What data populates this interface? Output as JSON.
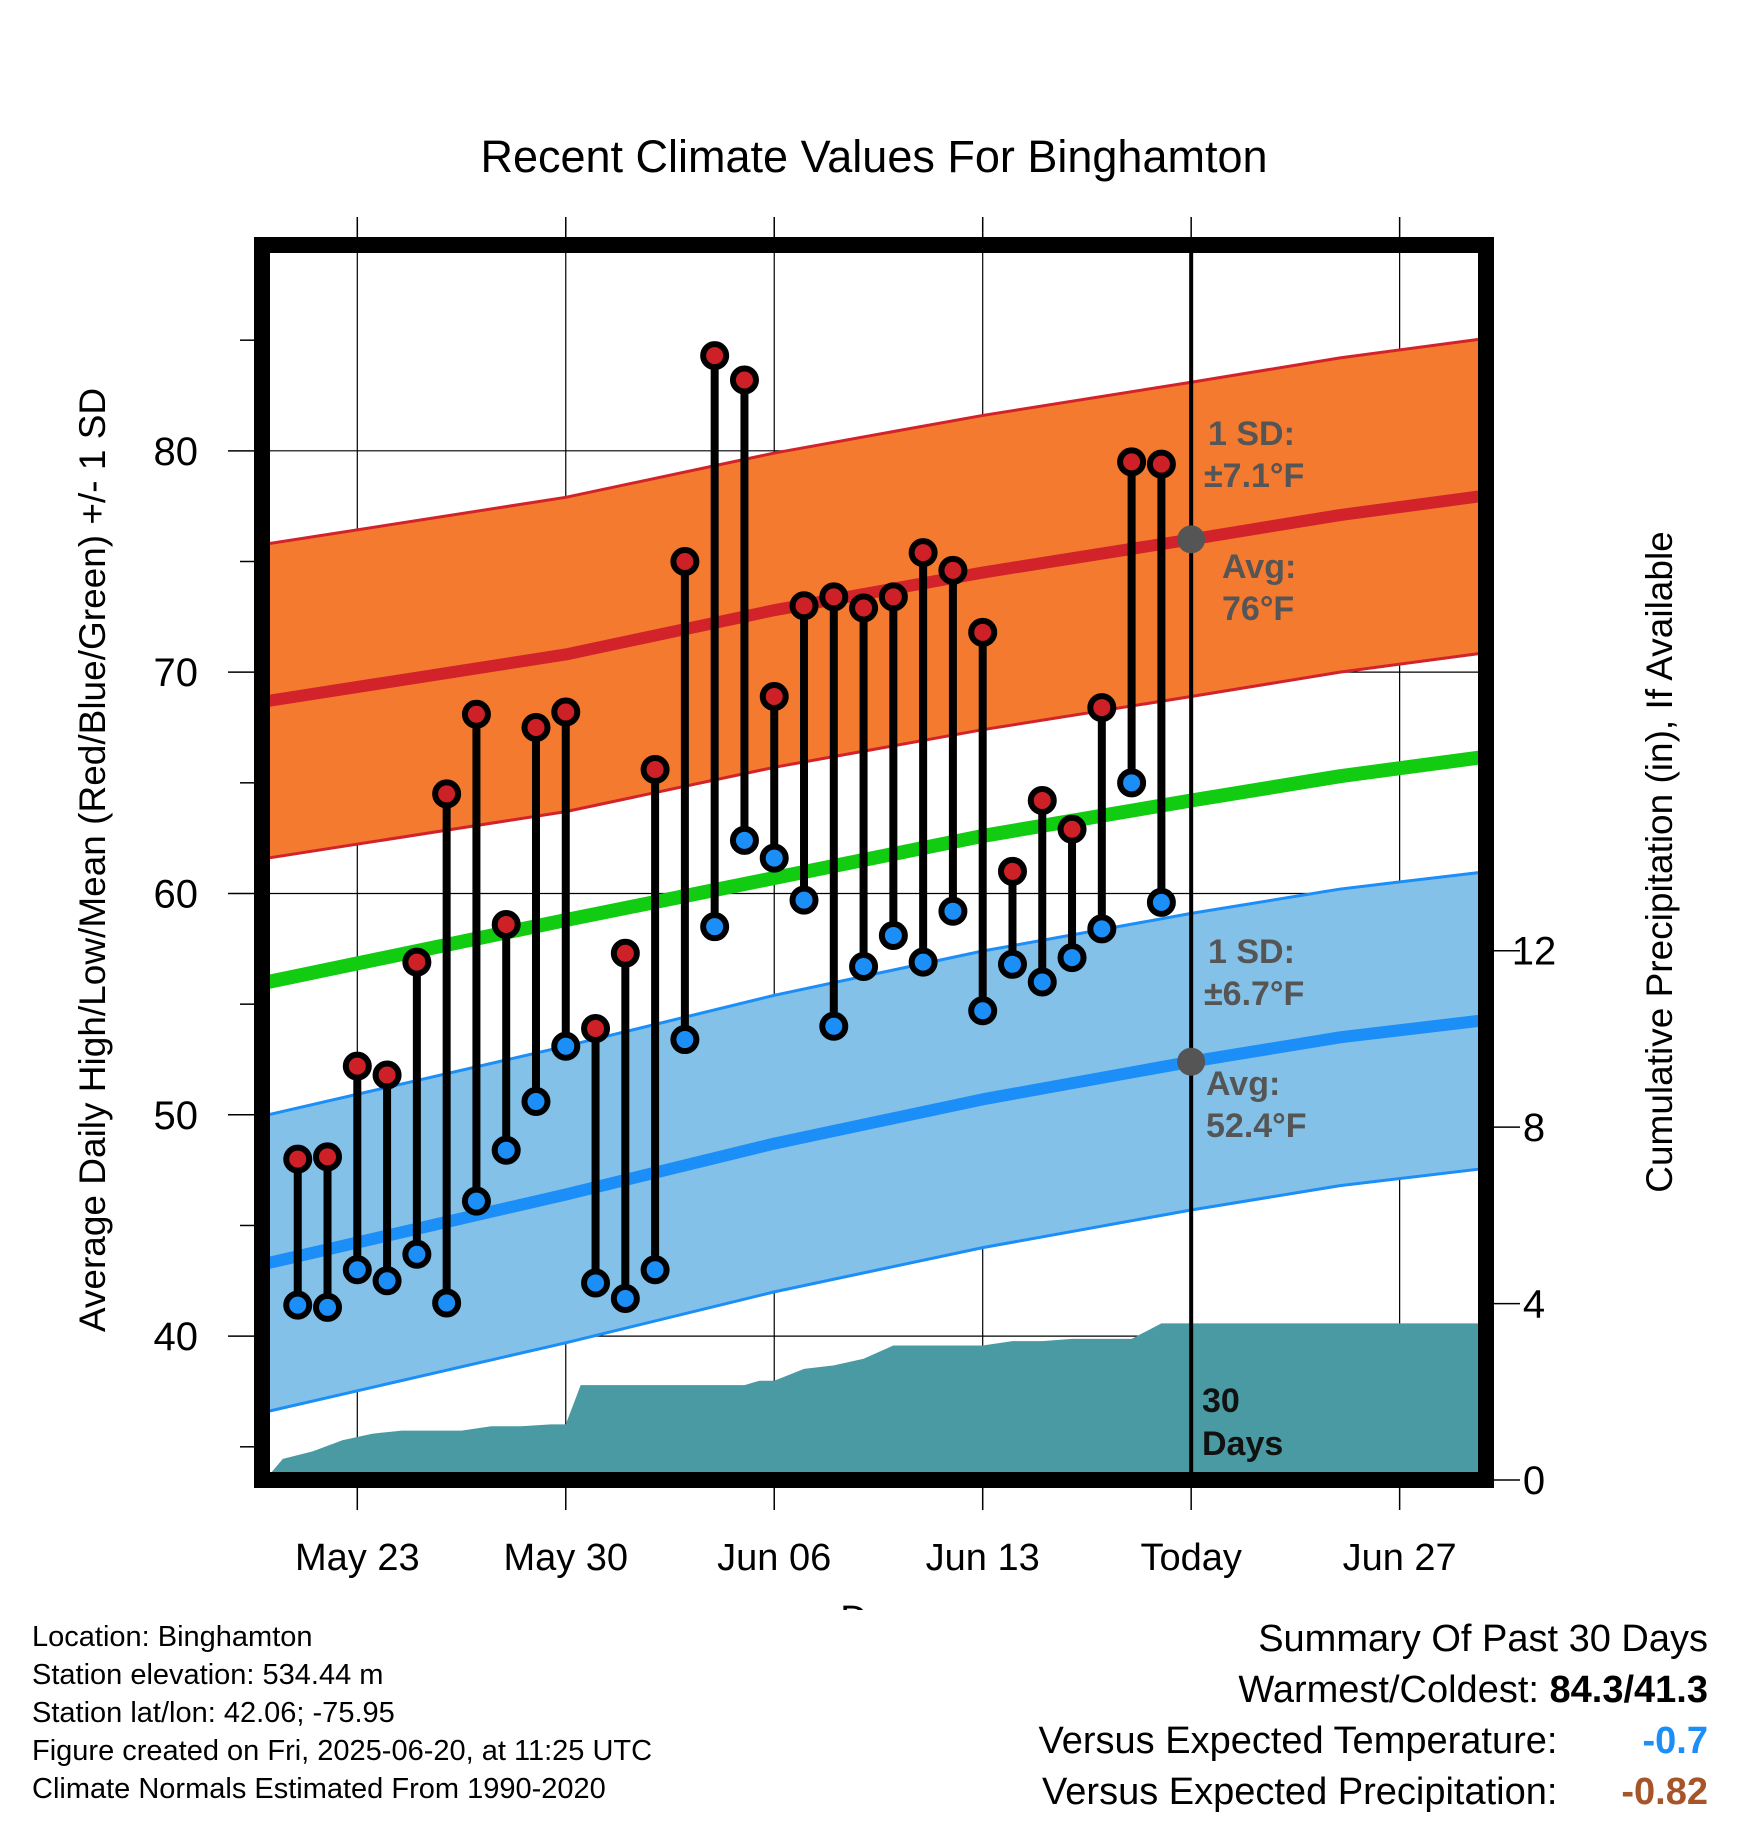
{
  "chart_data": {
    "type": "line",
    "title": "Recent Climate Values For Binghamton",
    "xlabel": "Day",
    "ylabel_left": "Average Daily High/Low/Mean (Red/Blue/Green) +/- 1 SD",
    "ylabel_right": "Cumulative Precipitation (in), If Available",
    "ylim_left": [
      33.5,
      89.3
    ],
    "ylim_right": [
      0,
      28
    ],
    "x_range_days": [
      -31.2,
      9.9
    ],
    "x_ticks": [
      {
        "label": "May 23",
        "day": -28
      },
      {
        "label": "May 30",
        "day": -21
      },
      {
        "label": "Jun 06",
        "day": -14
      },
      {
        "label": "Jun 13",
        "day": -7
      },
      {
        "label": "Today",
        "day": 0
      },
      {
        "label": "Jun 27",
        "day": 7
      }
    ],
    "y_ticks_left": [
      40,
      50,
      60,
      70,
      80
    ],
    "y_ticks_right": [
      0,
      4,
      8,
      12
    ],
    "grid": true,
    "days": [
      -30,
      -29,
      -28,
      -27,
      -26,
      -25,
      -24,
      -23,
      -22,
      -21,
      -20,
      -19,
      -18,
      -17,
      -16,
      -15,
      -14,
      -13,
      -12,
      -11,
      -10,
      -9,
      -8,
      -7,
      -6,
      -5,
      -4,
      -3,
      -2,
      -1
    ],
    "highs": [
      48.0,
      48.1,
      52.2,
      51.8,
      56.9,
      64.5,
      68.1,
      58.6,
      67.5,
      68.2,
      53.9,
      57.3,
      65.6,
      75.0,
      84.3,
      83.2,
      68.9,
      73.0,
      73.4,
      72.9,
      73.4,
      75.4,
      74.6,
      71.8,
      61.0,
      64.2,
      62.9,
      68.4,
      79.5,
      79.4
    ],
    "lows": [
      41.4,
      41.3,
      43.0,
      42.5,
      43.7,
      41.5,
      46.1,
      48.4,
      50.6,
      53.1,
      42.4,
      41.7,
      43.0,
      53.4,
      58.5,
      62.4,
      61.6,
      59.7,
      54.0,
      56.7,
      58.1,
      56.9,
      59.2,
      54.7,
      56.8,
      56.0,
      57.1,
      58.4,
      65.0,
      59.6
    ],
    "normal_high": {
      "days": [
        -31,
        -21,
        -14,
        -7,
        0,
        5,
        10
      ],
      "avg": [
        68.7,
        70.8,
        72.8,
        74.5,
        76.0,
        77.1,
        78.0
      ],
      "sd": 7.1
    },
    "normal_low": {
      "days": [
        -31,
        -21,
        -14,
        -7,
        0,
        5,
        10
      ],
      "avg": [
        43.3,
        46.4,
        48.7,
        50.7,
        52.4,
        53.5,
        54.3
      ],
      "sd": 6.7
    },
    "normal_mean": {
      "days": [
        -31,
        -21,
        -14,
        -7,
        0,
        5,
        10
      ],
      "values": [
        56.0,
        58.8,
        60.7,
        62.6,
        64.2,
        65.3,
        66.2
      ]
    },
    "precipitation": {
      "days": [
        -31.1,
        -30.5,
        -29.5,
        -28.5,
        -27.5,
        -26.5,
        -25.5,
        -24.5,
        -23.5,
        -22.5,
        -21.5,
        -21,
        -20.5,
        -20,
        -19,
        -18,
        -17,
        -16,
        -15,
        -14.5,
        -14,
        -13,
        -12,
        -11,
        -10,
        -9,
        -8,
        -7,
        -6,
        -5,
        -4,
        -3,
        -2,
        -1,
        9.9
      ],
      "values": [
        0,
        0.48,
        0.65,
        0.9,
        1.05,
        1.12,
        1.12,
        1.12,
        1.22,
        1.22,
        1.26,
        1.26,
        2.15,
        2.15,
        2.15,
        2.15,
        2.15,
        2.15,
        2.15,
        2.25,
        2.25,
        2.52,
        2.6,
        2.75,
        3.05,
        3.05,
        3.05,
        3.05,
        3.15,
        3.15,
        3.2,
        3.2,
        3.2,
        3.55,
        3.55
      ]
    },
    "annotations": {
      "high_sd_line1": "1 SD:",
      "high_sd_line2": "±7.1°F",
      "high_avg_line1": "Avg:",
      "high_avg_line2": "76°F",
      "low_sd_line1": "1 SD:",
      "low_sd_line2": "±6.7°F",
      "low_avg_line1": "Avg:",
      "low_avg_line2": "52.4°F",
      "days_line1": "30",
      "days_line2": "Days"
    },
    "colors": {
      "high_band": "#f47a2f",
      "high_line": "#d2232a",
      "low_band": "#83c1e8",
      "low_line": "#1b8ef7",
      "mean_line": "#11cc11",
      "precip": "#4a9aa3",
      "high_dot": "#cd2027",
      "low_dot": "#1c8ef8",
      "annotation_text": "#555555"
    }
  },
  "metadata": {
    "location": "Location: Binghamton",
    "elevation": "Station elevation: 534.44 m",
    "latlon": "Station lat/lon: 42.06; -75.95",
    "created": "Figure created on Fri, 2025-06-20, at 11:25 UTC",
    "normals": "Climate Normals Estimated From 1990-2020"
  },
  "summary": {
    "heading": "Summary Of Past 30 Days",
    "warmest_label": "Warmest/Coldest:",
    "warmest_value": "84.3/41.3",
    "temp_label": "Versus Expected Temperature:",
    "temp_value": "-0.7",
    "temp_color": "#1b8ef7",
    "precip_label": "Versus Expected Precipitation:",
    "precip_value": "-0.82",
    "precip_color": "#a6542a"
  }
}
